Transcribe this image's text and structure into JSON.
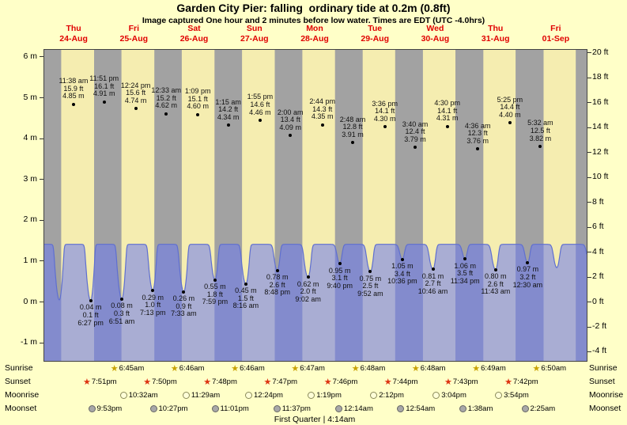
{
  "chart_data": {
    "type": "area",
    "title": "Garden City Pier: falling  ordinary tide at 0.2m (0.8ft)",
    "subtitle": "Image captured One hour and 2 minutes before low water. Times are EDT (UTC -4.0hrs)",
    "caption": "First Quarter | 4:14am",
    "x_axis": {
      "days": [
        {
          "weekday": "Thu",
          "date": "24-Aug"
        },
        {
          "weekday": "Fri",
          "date": "25-Aug"
        },
        {
          "weekday": "Sat",
          "date": "26-Aug"
        },
        {
          "weekday": "Sun",
          "date": "27-Aug"
        },
        {
          "weekday": "Mon",
          "date": "28-Aug"
        },
        {
          "weekday": "Tue",
          "date": "29-Aug"
        },
        {
          "weekday": "Wed",
          "date": "30-Aug"
        },
        {
          "weekday": "Thu",
          "date": "31-Aug"
        },
        {
          "weekday": "Fri",
          "date": "01-Sep"
        }
      ]
    },
    "y_axis_left": {
      "unit": "m",
      "ticks": [
        6,
        5,
        4,
        3,
        2,
        1,
        0,
        -1
      ],
      "labels": [
        "6 m",
        "5 m",
        "4 m",
        "3 m",
        "2 m",
        "1 m",
        "0 m",
        "-1 m"
      ],
      "ylim": [
        -1.4,
        6.2
      ]
    },
    "y_axis_right": {
      "unit": "ft",
      "ticks": [
        20,
        18,
        16,
        14,
        12,
        10,
        8,
        6,
        4,
        2,
        0,
        -2,
        -4
      ],
      "labels": [
        "20 ft",
        "18 ft",
        "16 ft",
        "14 ft",
        "12 ft",
        "10 ft",
        "8 ft",
        "6 ft",
        "4 ft",
        "2 ft",
        "0 ft",
        "-2 ft",
        "-4 ft"
      ]
    },
    "tide_events": [
      {
        "type": "high",
        "t": 11.633,
        "m": 4.85,
        "labels": [
          "11:38 am",
          "15.9 ft",
          "4.85 m"
        ]
      },
      {
        "type": "low",
        "t": 18.45,
        "m": 0.04,
        "labels": [
          "0.04 m",
          "0.1 ft",
          "6:27 pm"
        ]
      },
      {
        "type": "high",
        "t": 23.85,
        "m": 4.91,
        "labels": [
          "11:51 pm",
          "16.1 ft",
          "4.91 m"
        ]
      },
      {
        "type": "low",
        "t": 30.85,
        "m": 0.08,
        "labels": [
          "0.08 m",
          "0.3 ft",
          "6:51 am"
        ]
      },
      {
        "type": "high",
        "t": 36.4,
        "m": 4.74,
        "labels": [
          "12:24 pm",
          "15.6 ft",
          "4.74 m"
        ]
      },
      {
        "type": "low",
        "t": 43.217,
        "m": 0.29,
        "labels": [
          "0.29 m",
          "1.0 ft",
          "7:13 pm"
        ]
      },
      {
        "type": "high",
        "t": 48.55,
        "m": 4.62,
        "labels": [
          "12:33 am",
          "15.2 ft",
          "4.62 m"
        ]
      },
      {
        "type": "low",
        "t": 55.55,
        "m": 0.26,
        "labels": [
          "0.26 m",
          "0.9 ft",
          "7:33 am"
        ]
      },
      {
        "type": "high",
        "t": 61.15,
        "m": 4.6,
        "labels": [
          "1:09 pm",
          "15.1 ft",
          "4.60 m"
        ]
      },
      {
        "type": "low",
        "t": 67.983,
        "m": 0.55,
        "labels": [
          "0.55 m",
          "1.8 ft",
          "7:59 pm"
        ]
      },
      {
        "type": "high",
        "t": 73.25,
        "m": 4.34,
        "labels": [
          "1:15 am",
          "14.2 ft",
          "4.34 m"
        ]
      },
      {
        "type": "low",
        "t": 80.267,
        "m": 0.45,
        "labels": [
          "0.45 m",
          "1.5 ft",
          "8:16 am"
        ]
      },
      {
        "type": "high",
        "t": 85.917,
        "m": 4.46,
        "labels": [
          "1:55 pm",
          "14.6 ft",
          "4.46 m"
        ]
      },
      {
        "type": "low",
        "t": 92.8,
        "m": 0.78,
        "labels": [
          "0.78 m",
          "2.6 ft",
          "8:48 pm"
        ]
      },
      {
        "type": "high",
        "t": 98.0,
        "m": 4.09,
        "labels": [
          "2:00 am",
          "13.4 ft",
          "4.09 m"
        ]
      },
      {
        "type": "low",
        "t": 105.033,
        "m": 0.62,
        "labels": [
          "0.62 m",
          "2.0 ft",
          "9:02 am"
        ]
      },
      {
        "type": "high",
        "t": 110.733,
        "m": 4.35,
        "labels": [
          "2:44 pm",
          "14.3 ft",
          "4.35 m"
        ]
      },
      {
        "type": "low",
        "t": 117.667,
        "m": 0.95,
        "labels": [
          "0.95 m",
          "3.1 ft",
          "9:40 pm"
        ]
      },
      {
        "type": "high",
        "t": 122.8,
        "m": 3.91,
        "labels": [
          "2:48 am",
          "12.8 ft",
          "3.91 m"
        ]
      },
      {
        "type": "low",
        "t": 129.867,
        "m": 0.75,
        "labels": [
          "0.75 m",
          "2.5 ft",
          "9:52 am"
        ]
      },
      {
        "type": "high",
        "t": 135.6,
        "m": 4.3,
        "labels": [
          "3:36 pm",
          "14.1 ft",
          "4.30 m"
        ]
      },
      {
        "type": "low",
        "t": 142.6,
        "m": 1.05,
        "labels": [
          "1.05 m",
          "3.4 ft",
          "10:36 pm"
        ]
      },
      {
        "type": "high",
        "t": 147.667,
        "m": 3.79,
        "labels": [
          "3:40 am",
          "12.4 ft",
          "3.79 m"
        ]
      },
      {
        "type": "low",
        "t": 154.767,
        "m": 0.81,
        "labels": [
          "0.81 m",
          "2.7 ft",
          "10:46 am"
        ]
      },
      {
        "type": "high",
        "t": 160.5,
        "m": 4.31,
        "labels": [
          "4:30 pm",
          "14.1 ft",
          "4.31 m"
        ]
      },
      {
        "type": "low",
        "t": 167.567,
        "m": 1.06,
        "labels": [
          "1.06 m",
          "3.5 ft",
          "11:34 pm"
        ]
      },
      {
        "type": "high",
        "t": 172.6,
        "m": 3.76,
        "labels": [
          "4:36 am",
          "12.3 ft",
          "3.76 m"
        ]
      },
      {
        "type": "low",
        "t": 179.717,
        "m": 0.8,
        "labels": [
          "0.80 m",
          "2.6 ft",
          "11:43 am"
        ]
      },
      {
        "type": "high",
        "t": 185.417,
        "m": 4.4,
        "labels": [
          "5:25 pm",
          "14.4 ft",
          "4.40 m"
        ]
      },
      {
        "type": "low",
        "t": 192.5,
        "m": 0.97,
        "labels": [
          "0.97 m",
          "3.2 ft",
          "12:30 am"
        ]
      },
      {
        "type": "high",
        "t": 197.533,
        "m": 3.82,
        "labels": [
          "5:32 am",
          "12.5 ft",
          "3.82 m"
        ]
      }
    ],
    "padding_events": [
      {
        "t": -0.6,
        "m": 4.9
      },
      {
        "t": 5.97,
        "m": 0.06
      },
      {
        "t": 204.1,
        "m": 0.85
      },
      {
        "t": 210.4,
        "m": 4.45
      },
      {
        "t": 217.0,
        "m": 1.0
      }
    ],
    "astro": {
      "rows": [
        {
          "label": "Sunrise",
          "icon": "sunrise-star",
          "events": [
            {
              "day": 1,
              "time": "6:45am"
            },
            {
              "day": 2,
              "time": "6:46am"
            },
            {
              "day": 3,
              "time": "6:46am"
            },
            {
              "day": 4,
              "time": "6:47am"
            },
            {
              "day": 5,
              "time": "6:48am"
            },
            {
              "day": 6,
              "time": "6:48am"
            },
            {
              "day": 7,
              "time": "6:49am"
            },
            {
              "day": 8,
              "time": "6:50am"
            }
          ]
        },
        {
          "label": "Sunset",
          "icon": "sunset-star",
          "events": [
            {
              "day": 0,
              "time": "7:51pm"
            },
            {
              "day": 1,
              "time": "7:50pm"
            },
            {
              "day": 2,
              "time": "7:48pm"
            },
            {
              "day": 3,
              "time": "7:47pm"
            },
            {
              "day": 4,
              "time": "7:46pm"
            },
            {
              "day": 5,
              "time": "7:44pm"
            },
            {
              "day": 6,
              "time": "7:43pm"
            },
            {
              "day": 7,
              "time": "7:42pm"
            }
          ]
        },
        {
          "label": "Moonrise",
          "icon": "moon-light",
          "events": [
            {
              "day": 1,
              "time": "10:32am"
            },
            {
              "day": 2,
              "time": "11:29am"
            },
            {
              "day": 3,
              "time": "12:24pm"
            },
            {
              "day": 4,
              "time": "1:19pm"
            },
            {
              "day": 5,
              "time": "2:12pm"
            },
            {
              "day": 6,
              "time": "3:04pm"
            },
            {
              "day": 7,
              "time": "3:54pm"
            }
          ]
        },
        {
          "label": "Moonset",
          "icon": "moon-dark",
          "events": [
            {
              "day": 0,
              "time": "9:53pm"
            },
            {
              "day": 1,
              "time": "10:27pm"
            },
            {
              "day": 2,
              "time": "11:01pm"
            },
            {
              "day": 3,
              "time": "11:37pm"
            },
            {
              "day": 5,
              "time": "12:14am"
            },
            {
              "day": 6,
              "time": "12:54am"
            },
            {
              "day": 7,
              "time": "1:38am"
            },
            {
              "day": 8,
              "time": "2:25am"
            }
          ]
        }
      ]
    },
    "colors": {
      "background": "#ffffc8",
      "day_band": "#f5edb0",
      "night_band": "#a2a2a2",
      "tide_fill": "rgba(105,120,240,0.55)",
      "tide_stroke": "#5f6fd0",
      "day_label": "#e00000",
      "sunrise_star": "#c8a200",
      "sunset_star": "#dd3311",
      "moonrise_fill": "#ffffd8",
      "moonset_fill": "#a8a8a8"
    }
  }
}
